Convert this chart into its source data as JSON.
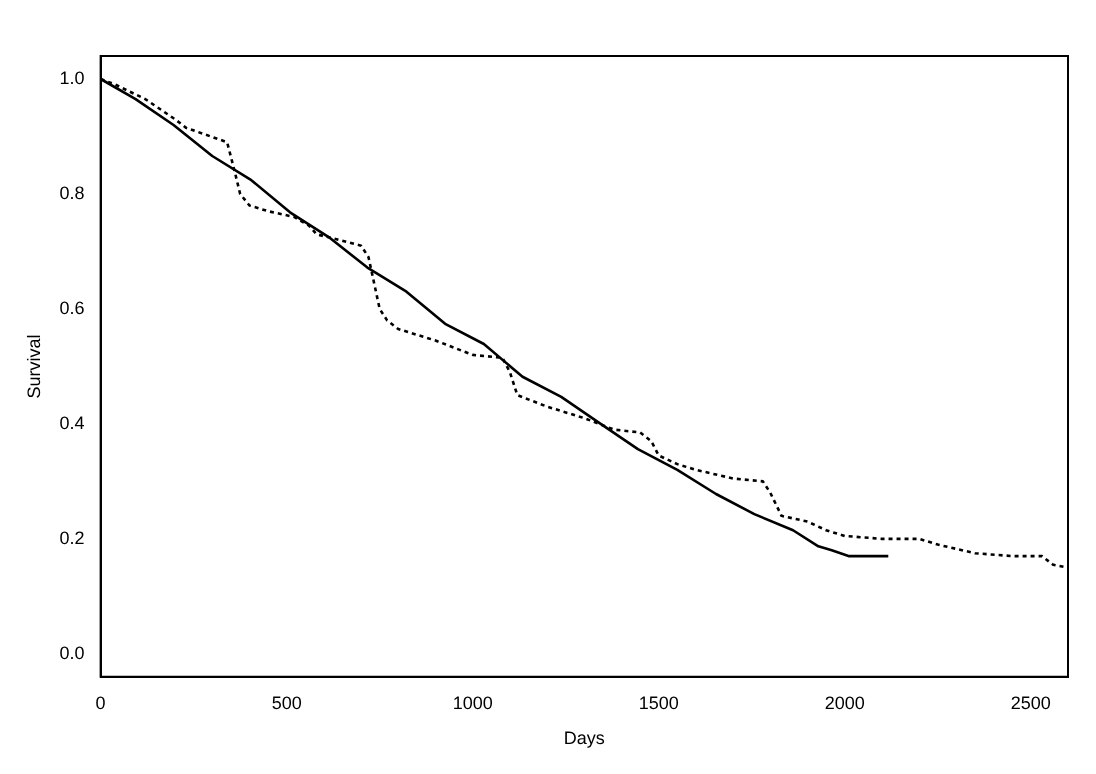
{
  "chart_data": {
    "type": "line",
    "xlabel": "Days",
    "ylabel": "Survival",
    "xlim": [
      0,
      2600
    ],
    "xticks": [
      0,
      500,
      1000,
      1500,
      2000,
      2500
    ],
    "ylim": [
      -0.04,
      1.04
    ],
    "yticks": [
      {
        "value": 0,
        "label": "0.0"
      },
      0.2,
      0.4,
      0.6,
      0.8,
      {
        "value": 1,
        "label": "1.0"
      }
    ],
    "grid": false,
    "legend": false,
    "marker": "none",
    "series": [
      {
        "color": "#000000",
        "line_style": "solid",
        "x": [
          0,
          94,
          196,
          300,
          405,
          509,
          613,
          717,
          822,
          926,
          1030,
          1134,
          1238,
          1342,
          1444,
          1550,
          1654,
          1757,
          1861,
          1929,
          1965,
          2010,
          2117
        ],
        "values": [
          1.0,
          0.965,
          0.92,
          0.866,
          0.824,
          0.768,
          0.725,
          0.672,
          0.63,
          0.574,
          0.539,
          0.482,
          0.447,
          0.401,
          0.356,
          0.32,
          0.278,
          0.243,
          0.215,
          0.187,
          0.18,
          0.17,
          0.17
        ]
      },
      {
        "color": "#000000",
        "line_style": "dotted",
        "x": [
          0,
          40,
          120,
          200,
          230,
          340,
          360,
          375,
          400,
          450,
          520,
          560,
          580,
          700,
          720,
          750,
          770,
          800,
          900,
          1000,
          1080,
          1100,
          1120,
          1200,
          1300,
          1380,
          1450,
          1480,
          1500,
          1550,
          1600,
          1700,
          1780,
          1800,
          1830,
          1900,
          1950,
          2000,
          2100,
          2200,
          2250,
          2350,
          2450,
          2530,
          2560,
          2600
        ],
        "values": [
          1.0,
          0.99,
          0.965,
          0.93,
          0.915,
          0.89,
          0.84,
          0.8,
          0.78,
          0.77,
          0.76,
          0.745,
          0.73,
          0.71,
          0.69,
          0.6,
          0.58,
          0.565,
          0.545,
          0.52,
          0.515,
          0.49,
          0.45,
          0.43,
          0.41,
          0.39,
          0.385,
          0.37,
          0.345,
          0.33,
          0.32,
          0.305,
          0.3,
          0.28,
          0.24,
          0.23,
          0.215,
          0.205,
          0.2,
          0.2,
          0.19,
          0.175,
          0.17,
          0.17,
          0.155,
          0.15
        ]
      }
    ]
  }
}
